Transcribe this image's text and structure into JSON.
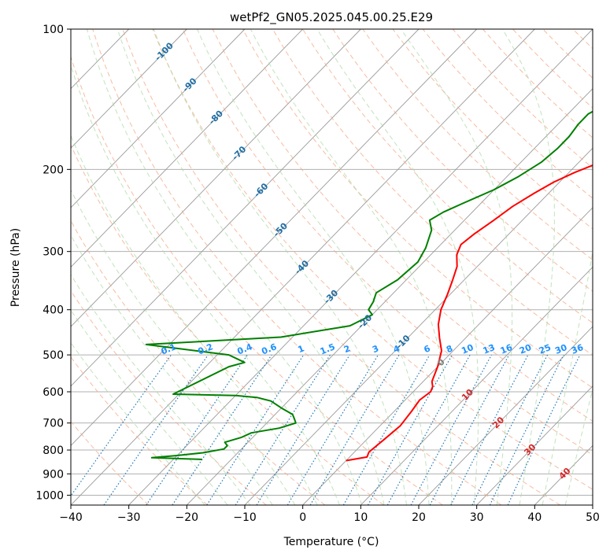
{
  "chart_data": {
    "type": "line",
    "title": "wetPf2_GN05.2025.045.00.25.E29",
    "xlabel": "Temperature (°C)",
    "ylabel": "Pressure (hPa)",
    "xlim": [
      -40,
      50
    ],
    "ylim": [
      1050,
      100
    ],
    "y_scale": "log",
    "x_ticks": [
      -40,
      -30,
      -20,
      -10,
      0,
      10,
      20,
      30,
      40,
      50
    ],
    "y_ticks": [
      100,
      200,
      300,
      400,
      500,
      600,
      700,
      800,
      900,
      1000
    ],
    "grid": true,
    "colors": {
      "temperature": "#ff0000",
      "dewpoint": "#008000",
      "dry_adiabats": "#f4a582",
      "moist_adiabats": "#a6d7a0",
      "mixing_ratio": "#1f77b4",
      "skewed_isotherms": "#999999",
      "isotherm_labels": "#1f6ea5",
      "mixing_labels": "#1e90ff",
      "warm_labels": "#d62728"
    },
    "isotherm_labels": [
      "-100",
      "-90",
      "-80",
      "-70",
      "-60",
      "-50",
      "-40",
      "-30",
      "-20",
      "-10",
      "0",
      "10",
      "20",
      "30",
      "40"
    ],
    "mixing_ratio_labels": [
      "0.1",
      "0.2",
      "0.4",
      "0.6",
      "1",
      "1.5",
      "2",
      "3",
      "4",
      "6",
      "8",
      "10",
      "13",
      "16",
      "20",
      "25",
      "30",
      "36"
    ],
    "series": [
      {
        "key": "temperature",
        "points": [
          [
            0,
            843
          ],
          [
            3,
            828
          ],
          [
            2.5,
            808
          ],
          [
            3,
            760
          ],
          [
            3.5,
            710
          ],
          [
            3,
            660
          ],
          [
            2.5,
            625
          ],
          [
            3,
            600
          ],
          [
            2.5,
            585
          ],
          [
            1.5,
            570
          ],
          [
            0,
            530
          ],
          [
            -2,
            490
          ],
          [
            -4.5,
            460
          ],
          [
            -7,
            430
          ],
          [
            -9,
            400
          ],
          [
            -10.5,
            370
          ],
          [
            -12,
            345
          ],
          [
            -13.5,
            323
          ],
          [
            -15.5,
            305
          ],
          [
            -16.5,
            290
          ],
          [
            -16,
            275
          ],
          [
            -15,
            258
          ],
          [
            -14,
            240
          ],
          [
            -12.5,
            225
          ],
          [
            -11,
            213
          ],
          [
            -9,
            203
          ],
          [
            -6,
            192
          ],
          [
            -3,
            182
          ],
          [
            0,
            172
          ],
          [
            3,
            163
          ],
          [
            6,
            155
          ],
          [
            8.5,
            148
          ],
          [
            10.5,
            141
          ],
          [
            10.5,
            133
          ],
          [
            11,
            126
          ],
          [
            12,
            119
          ],
          [
            12.5,
            112
          ],
          [
            12.5,
            105
          ],
          [
            12,
            100
          ]
        ]
      },
      {
        "key": "dewpoint",
        "points": [
          [
            -25,
            838
          ],
          [
            -34,
            831
          ],
          [
            -30,
            822
          ],
          [
            -26,
            811
          ],
          [
            -23,
            796
          ],
          [
            -23,
            783
          ],
          [
            -24,
            770
          ],
          [
            -22,
            752
          ],
          [
            -21,
            735
          ],
          [
            -17,
            718
          ],
          [
            -15,
            700
          ],
          [
            -16,
            685
          ],
          [
            -17,
            671
          ],
          [
            -20,
            650
          ],
          [
            -23,
            628
          ],
          [
            -26,
            617
          ],
          [
            -30,
            611
          ],
          [
            -41,
            607
          ],
          [
            -36,
            530
          ],
          [
            -34,
            519
          ],
          [
            -38,
            500
          ],
          [
            -54,
            475
          ],
          [
            -32,
            458
          ],
          [
            -22,
            433
          ],
          [
            -20,
            410
          ],
          [
            -21.5,
            400
          ],
          [
            -22,
            385
          ],
          [
            -23,
            368
          ],
          [
            -21.5,
            345
          ],
          [
            -21,
            316
          ],
          [
            -22,
            295
          ],
          [
            -24,
            270
          ],
          [
            -26,
            257
          ],
          [
            -25,
            247
          ],
          [
            -23,
            236
          ],
          [
            -20,
            221
          ],
          [
            -18,
            207
          ],
          [
            -16.5,
            193
          ],
          [
            -16,
            180
          ],
          [
            -16,
            170
          ],
          [
            -16.5,
            160
          ],
          [
            -16.5,
            152
          ],
          [
            -15,
            145
          ],
          [
            -12,
            138
          ],
          [
            -7,
            132
          ],
          [
            -5,
            123
          ],
          [
            -2,
            114
          ],
          [
            2,
            105
          ],
          [
            3,
            100
          ]
        ]
      }
    ]
  }
}
